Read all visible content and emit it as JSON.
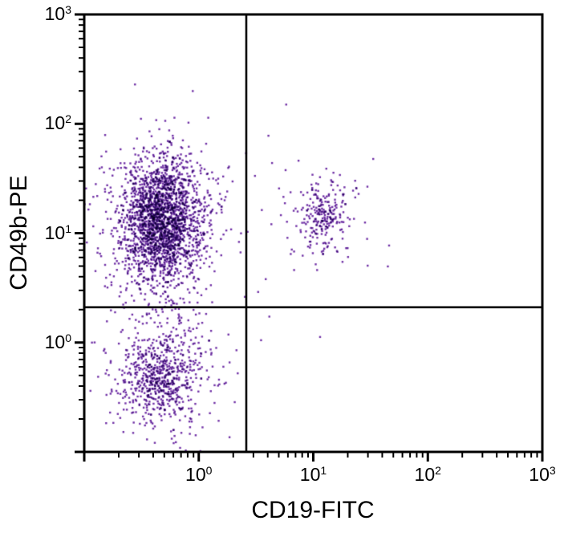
{
  "chart_data": {
    "type": "scatter",
    "title": "",
    "xlabel": "CD19-FITC",
    "ylabel": "CD49b-PE",
    "xscale": "log",
    "yscale": "log",
    "xlim": [
      0.1,
      1000
    ],
    "ylim": [
      0.1,
      1000
    ],
    "grid": false,
    "legend": "none",
    "tick_base": "10",
    "x_tick_exponents": [
      0,
      1,
      2,
      3
    ],
    "y_tick_exponents": [
      3,
      2,
      1,
      0
    ],
    "axis_color": "#000000",
    "dot_color": "#6F2FA5",
    "quadrant_gates": {
      "x": 2.6,
      "y": 2.1
    },
    "clusters": [
      {
        "name": "nk-cells-upper-left-core",
        "n": 1900,
        "cx": -0.32,
        "cy": 1.12,
        "sx": 0.17,
        "sy": 0.28
      },
      {
        "name": "nk-cells-upper-left-halo",
        "n": 450,
        "cx": -0.34,
        "cy": 1.05,
        "sx": 0.32,
        "sy": 0.42
      },
      {
        "name": "double-negative-core",
        "n": 520,
        "cx": -0.32,
        "cy": -0.3,
        "sx": 0.17,
        "sy": 0.21
      },
      {
        "name": "double-negative-halo",
        "n": 230,
        "cx": -0.33,
        "cy": -0.33,
        "sx": 0.3,
        "sy": 0.34
      },
      {
        "name": "b-cells-double-pos-core",
        "n": 180,
        "cx": 1.09,
        "cy": 1.17,
        "sx": 0.1,
        "sy": 0.13
      },
      {
        "name": "b-cells-double-pos-halo",
        "n": 85,
        "cx": 1.05,
        "cy": 1.1,
        "sx": 0.22,
        "sy": 0.27
      }
    ],
    "outlier_points": [
      [
        5.8,
        150
      ],
      [
        3.5,
        1.05
      ],
      [
        3.3,
        2.9
      ],
      [
        6.8,
        4.6
      ],
      [
        10.8,
        4.6
      ]
    ],
    "seed": 1234
  }
}
